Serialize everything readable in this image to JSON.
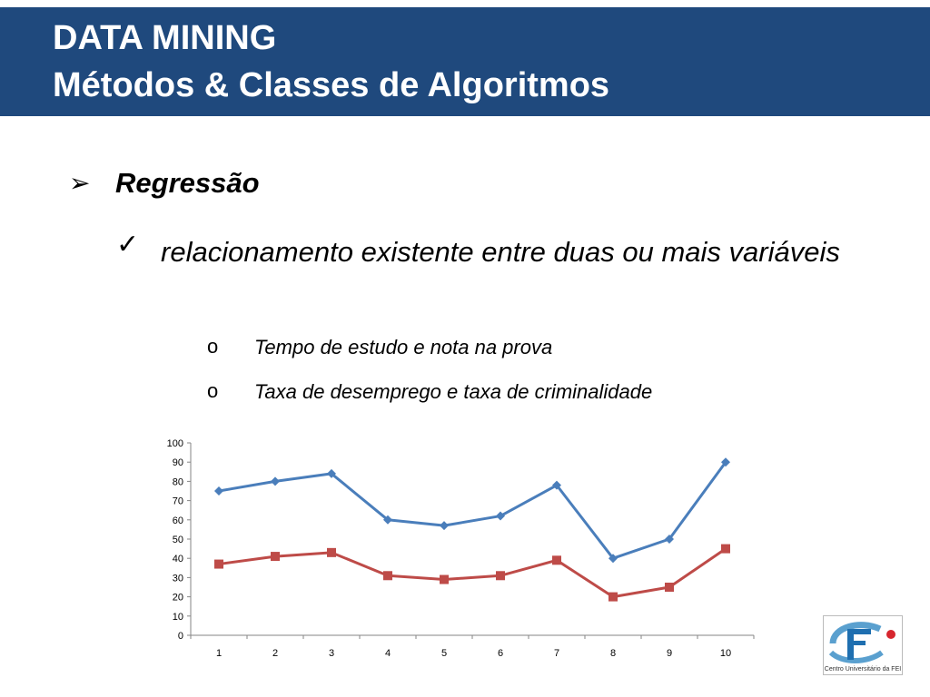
{
  "header": {
    "title_line1": "DATA MINING",
    "title_line2": "Métodos & Classes de Algoritmos",
    "background_color": "#1f497d"
  },
  "content": {
    "level1": {
      "marker": "➢",
      "text": "Regressão"
    },
    "level2": {
      "marker": "✓",
      "text": "relacionamento existente entre duas ou mais variáveis"
    },
    "level3": [
      {
        "marker": "o",
        "text": "Tempo de estudo e nota na prova"
      },
      {
        "marker": "o",
        "text": "Taxa de desemprego e taxa de criminalidade"
      }
    ]
  },
  "chart_data": {
    "type": "line",
    "x": [
      1,
      2,
      3,
      4,
      5,
      6,
      7,
      8,
      9,
      10
    ],
    "y_ticks": [
      0,
      10,
      20,
      30,
      40,
      50,
      60,
      70,
      80,
      90,
      100
    ],
    "ylim": [
      0,
      100
    ],
    "grid": false,
    "series": [
      {
        "values": [
          75,
          80,
          84,
          60,
          57,
          62,
          78,
          40,
          50,
          90
        ],
        "color": "#4a7ebb",
        "marker": "diamond"
      },
      {
        "values": [
          37,
          41,
          43,
          31,
          29,
          31,
          39,
          20,
          25,
          45
        ],
        "color": "#be4b48",
        "marker": "square"
      }
    ]
  },
  "logo": {
    "caption": "Centro Universitário da FEI",
    "mark": "FEI"
  }
}
